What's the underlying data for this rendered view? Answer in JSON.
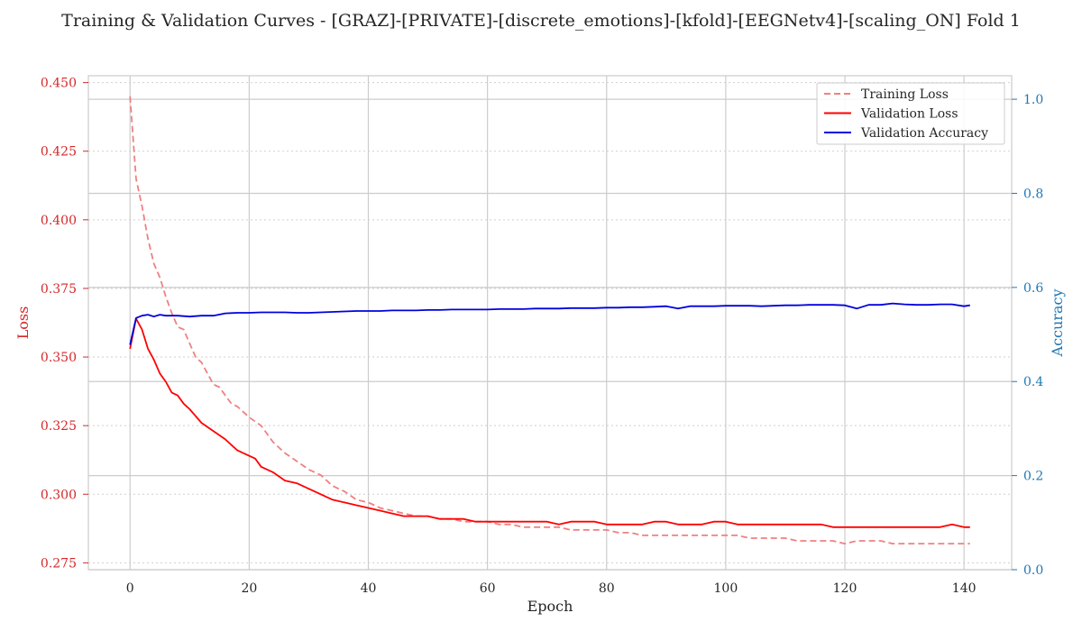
{
  "chart_data": {
    "type": "line",
    "title": "Training & Validation Curves - [GRAZ]-[PRIVATE]-[discrete_emotions]-[kfold]-[EEGNetv4]-[scaling_ON] Fold 1",
    "xlabel": "Epoch",
    "ylabel_left": "Loss",
    "ylabel_right": "Accuracy",
    "xlim": [
      -7,
      148
    ],
    "ylim_left": [
      0.2725,
      0.4525
    ],
    "ylim_right": [
      0.0,
      1.05
    ],
    "x_ticks": [
      0,
      20,
      40,
      60,
      80,
      100,
      120,
      140
    ],
    "y_left_ticks": [
      0.275,
      0.3,
      0.325,
      0.35,
      0.375,
      0.4,
      0.425,
      0.45
    ],
    "y_left_tick_labels": [
      "0.275",
      "0.300",
      "0.325",
      "0.350",
      "0.375",
      "0.400",
      "0.425",
      "0.450"
    ],
    "y_right_ticks": [
      0.0,
      0.2,
      0.4,
      0.6,
      0.8,
      1.0
    ],
    "y_right_tick_labels": [
      "0.0",
      "0.2",
      "0.4",
      "0.6",
      "0.8",
      "1.0"
    ],
    "grid": true,
    "legend_position": "top-right",
    "colors": {
      "training_loss": "#f08080",
      "validation_loss": "#ff0000",
      "validation_accuracy": "#0000dd",
      "left_axis": "#d62728",
      "right_axis": "#1f77b4"
    },
    "series": [
      {
        "name": "Training Loss",
        "axis": "left",
        "style": "dashed",
        "points": [
          [
            0,
            0.445
          ],
          [
            1,
            0.415
          ],
          [
            2,
            0.405
          ],
          [
            3,
            0.393
          ],
          [
            4,
            0.384
          ],
          [
            5,
            0.379
          ],
          [
            6,
            0.372
          ],
          [
            7,
            0.366
          ],
          [
            8,
            0.361
          ],
          [
            9,
            0.36
          ],
          [
            10,
            0.355
          ],
          [
            11,
            0.35
          ],
          [
            12,
            0.348
          ],
          [
            13,
            0.344
          ],
          [
            14,
            0.34
          ],
          [
            15,
            0.339
          ],
          [
            16,
            0.336
          ],
          [
            17,
            0.333
          ],
          [
            18,
            0.332
          ],
          [
            19,
            0.33
          ],
          [
            20,
            0.328
          ],
          [
            22,
            0.325
          ],
          [
            24,
            0.319
          ],
          [
            26,
            0.315
          ],
          [
            28,
            0.312
          ],
          [
            30,
            0.309
          ],
          [
            32,
            0.307
          ],
          [
            34,
            0.303
          ],
          [
            36,
            0.301
          ],
          [
            38,
            0.298
          ],
          [
            40,
            0.297
          ],
          [
            42,
            0.295
          ],
          [
            44,
            0.294
          ],
          [
            46,
            0.293
          ],
          [
            48,
            0.292
          ],
          [
            50,
            0.292
          ],
          [
            52,
            0.291
          ],
          [
            54,
            0.291
          ],
          [
            56,
            0.29
          ],
          [
            58,
            0.29
          ],
          [
            60,
            0.29
          ],
          [
            62,
            0.289
          ],
          [
            64,
            0.289
          ],
          [
            66,
            0.288
          ],
          [
            68,
            0.288
          ],
          [
            70,
            0.288
          ],
          [
            72,
            0.288
          ],
          [
            74,
            0.287
          ],
          [
            76,
            0.287
          ],
          [
            78,
            0.287
          ],
          [
            80,
            0.287
          ],
          [
            82,
            0.286
          ],
          [
            84,
            0.286
          ],
          [
            86,
            0.285
          ],
          [
            88,
            0.285
          ],
          [
            90,
            0.285
          ],
          [
            92,
            0.285
          ],
          [
            94,
            0.285
          ],
          [
            96,
            0.285
          ],
          [
            98,
            0.285
          ],
          [
            100,
            0.285
          ],
          [
            102,
            0.285
          ],
          [
            104,
            0.284
          ],
          [
            106,
            0.284
          ],
          [
            108,
            0.284
          ],
          [
            110,
            0.284
          ],
          [
            112,
            0.283
          ],
          [
            114,
            0.283
          ],
          [
            116,
            0.283
          ],
          [
            118,
            0.283
          ],
          [
            120,
            0.282
          ],
          [
            122,
            0.283
          ],
          [
            124,
            0.283
          ],
          [
            126,
            0.283
          ],
          [
            128,
            0.282
          ],
          [
            130,
            0.282
          ],
          [
            132,
            0.282
          ],
          [
            134,
            0.282
          ],
          [
            136,
            0.282
          ],
          [
            138,
            0.282
          ],
          [
            140,
            0.282
          ],
          [
            141,
            0.282
          ]
        ]
      },
      {
        "name": "Validation Loss",
        "axis": "left",
        "style": "solid",
        "points": [
          [
            0,
            0.353
          ],
          [
            1,
            0.364
          ],
          [
            2,
            0.36
          ],
          [
            3,
            0.353
          ],
          [
            4,
            0.349
          ],
          [
            5,
            0.344
          ],
          [
            6,
            0.341
          ],
          [
            7,
            0.337
          ],
          [
            8,
            0.336
          ],
          [
            9,
            0.333
          ],
          [
            10,
            0.331
          ],
          [
            12,
            0.326
          ],
          [
            14,
            0.323
          ],
          [
            16,
            0.32
          ],
          [
            18,
            0.316
          ],
          [
            20,
            0.314
          ],
          [
            21,
            0.313
          ],
          [
            22,
            0.31
          ],
          [
            24,
            0.308
          ],
          [
            26,
            0.305
          ],
          [
            28,
            0.304
          ],
          [
            30,
            0.302
          ],
          [
            32,
            0.3
          ],
          [
            34,
            0.298
          ],
          [
            36,
            0.297
          ],
          [
            38,
            0.296
          ],
          [
            40,
            0.295
          ],
          [
            42,
            0.294
          ],
          [
            44,
            0.293
          ],
          [
            46,
            0.292
          ],
          [
            48,
            0.292
          ],
          [
            50,
            0.292
          ],
          [
            52,
            0.291
          ],
          [
            54,
            0.291
          ],
          [
            56,
            0.291
          ],
          [
            58,
            0.29
          ],
          [
            60,
            0.29
          ],
          [
            62,
            0.29
          ],
          [
            64,
            0.29
          ],
          [
            66,
            0.29
          ],
          [
            68,
            0.29
          ],
          [
            70,
            0.29
          ],
          [
            72,
            0.289
          ],
          [
            74,
            0.29
          ],
          [
            76,
            0.29
          ],
          [
            78,
            0.29
          ],
          [
            80,
            0.289
          ],
          [
            82,
            0.289
          ],
          [
            84,
            0.289
          ],
          [
            86,
            0.289
          ],
          [
            88,
            0.29
          ],
          [
            90,
            0.29
          ],
          [
            92,
            0.289
          ],
          [
            94,
            0.289
          ],
          [
            96,
            0.289
          ],
          [
            98,
            0.29
          ],
          [
            100,
            0.29
          ],
          [
            102,
            0.289
          ],
          [
            104,
            0.289
          ],
          [
            106,
            0.289
          ],
          [
            108,
            0.289
          ],
          [
            110,
            0.289
          ],
          [
            112,
            0.289
          ],
          [
            114,
            0.289
          ],
          [
            116,
            0.289
          ],
          [
            118,
            0.288
          ],
          [
            120,
            0.288
          ],
          [
            122,
            0.288
          ],
          [
            124,
            0.288
          ],
          [
            126,
            0.288
          ],
          [
            128,
            0.288
          ],
          [
            130,
            0.288
          ],
          [
            132,
            0.288
          ],
          [
            134,
            0.288
          ],
          [
            136,
            0.288
          ],
          [
            138,
            0.289
          ],
          [
            140,
            0.288
          ],
          [
            141,
            0.288
          ]
        ]
      },
      {
        "name": "Validation Accuracy",
        "axis": "right",
        "style": "solid",
        "points": [
          [
            0,
            0.478
          ],
          [
            1,
            0.535
          ],
          [
            2,
            0.54
          ],
          [
            3,
            0.542
          ],
          [
            4,
            0.538
          ],
          [
            5,
            0.542
          ],
          [
            6,
            0.54
          ],
          [
            8,
            0.54
          ],
          [
            10,
            0.538
          ],
          [
            12,
            0.54
          ],
          [
            14,
            0.54
          ],
          [
            16,
            0.545
          ],
          [
            18,
            0.546
          ],
          [
            20,
            0.546
          ],
          [
            22,
            0.547
          ],
          [
            24,
            0.547
          ],
          [
            26,
            0.547
          ],
          [
            28,
            0.546
          ],
          [
            30,
            0.546
          ],
          [
            32,
            0.547
          ],
          [
            34,
            0.548
          ],
          [
            36,
            0.549
          ],
          [
            38,
            0.55
          ],
          [
            40,
            0.55
          ],
          [
            42,
            0.55
          ],
          [
            44,
            0.551
          ],
          [
            46,
            0.551
          ],
          [
            48,
            0.551
          ],
          [
            50,
            0.552
          ],
          [
            52,
            0.552
          ],
          [
            54,
            0.553
          ],
          [
            56,
            0.553
          ],
          [
            58,
            0.553
          ],
          [
            60,
            0.553
          ],
          [
            62,
            0.554
          ],
          [
            64,
            0.554
          ],
          [
            66,
            0.554
          ],
          [
            68,
            0.555
          ],
          [
            70,
            0.555
          ],
          [
            72,
            0.555
          ],
          [
            74,
            0.556
          ],
          [
            76,
            0.556
          ],
          [
            78,
            0.556
          ],
          [
            80,
            0.557
          ],
          [
            82,
            0.557
          ],
          [
            84,
            0.558
          ],
          [
            86,
            0.558
          ],
          [
            88,
            0.559
          ],
          [
            90,
            0.56
          ],
          [
            92,
            0.555
          ],
          [
            94,
            0.56
          ],
          [
            96,
            0.56
          ],
          [
            98,
            0.56
          ],
          [
            100,
            0.561
          ],
          [
            102,
            0.561
          ],
          [
            104,
            0.561
          ],
          [
            106,
            0.56
          ],
          [
            108,
            0.561
          ],
          [
            110,
            0.562
          ],
          [
            112,
            0.562
          ],
          [
            114,
            0.563
          ],
          [
            116,
            0.563
          ],
          [
            118,
            0.563
          ],
          [
            120,
            0.562
          ],
          [
            122,
            0.555
          ],
          [
            124,
            0.563
          ],
          [
            126,
            0.563
          ],
          [
            128,
            0.566
          ],
          [
            130,
            0.564
          ],
          [
            132,
            0.563
          ],
          [
            134,
            0.563
          ],
          [
            136,
            0.564
          ],
          [
            138,
            0.564
          ],
          [
            140,
            0.56
          ],
          [
            141,
            0.562
          ]
        ]
      }
    ]
  }
}
